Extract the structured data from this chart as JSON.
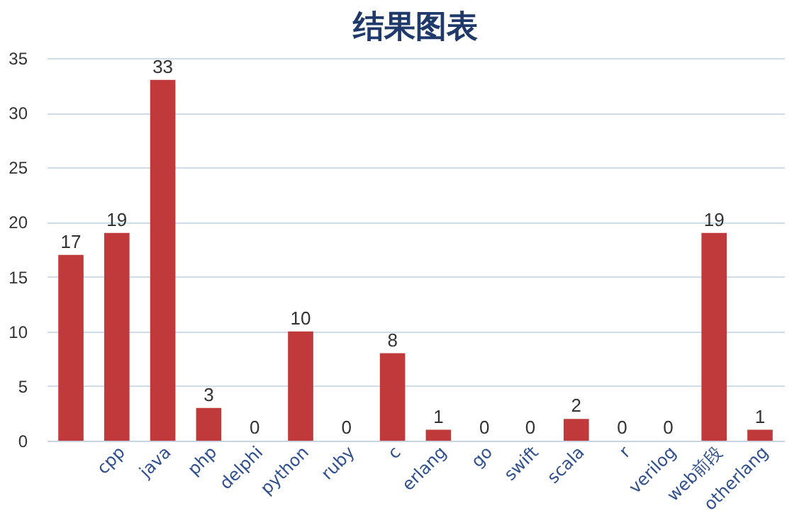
{
  "chart_data": {
    "type": "bar",
    "title": "结果图表",
    "categories": [
      null,
      "cpp",
      "java",
      "php",
      "delphi",
      "python",
      "ruby",
      "c",
      "erlang",
      "go",
      "swift",
      "scala",
      "r",
      "verilog",
      "web前段",
      "otherlang"
    ],
    "values": [
      17,
      19,
      33,
      3,
      0,
      10,
      0,
      8,
      1,
      0,
      0,
      2,
      0,
      0,
      19,
      1
    ],
    "color": "#c0393b",
    "ylim": [
      0,
      35
    ],
    "yticks": [
      0,
      5,
      10,
      15,
      20,
      25,
      30,
      35
    ],
    "grid": "y",
    "data_labels": true
  }
}
